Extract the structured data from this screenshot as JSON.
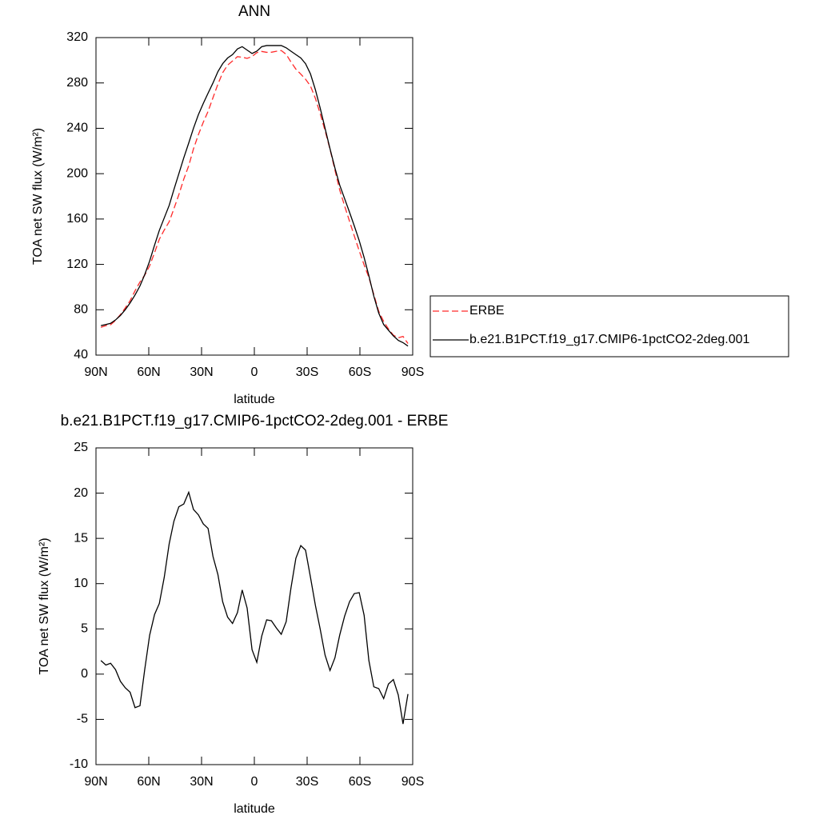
{
  "chart_data": [
    {
      "type": "line",
      "title": "ANN",
      "xlabel": "latitude",
      "ylabel": "TOA net SW flux (W/m²)",
      "x": [
        87.2,
        84.4,
        81.7,
        78.9,
        76.1,
        73.4,
        70.6,
        67.8,
        65.0,
        62.3,
        59.5,
        56.7,
        54.0,
        51.2,
        48.4,
        45.7,
        42.9,
        40.1,
        37.3,
        34.6,
        31.8,
        29.0,
        26.3,
        23.5,
        20.7,
        18.0,
        15.2,
        12.4,
        9.6,
        6.9,
        4.1,
        1.3,
        -1.4,
        -4.2,
        -7.0,
        -9.7,
        -12.5,
        -15.3,
        -18.1,
        -20.8,
        -23.6,
        -26.4,
        -29.1,
        -31.9,
        -34.7,
        -37.4,
        -40.2,
        -43.0,
        -45.8,
        -48.5,
        -51.3,
        -54.1,
        -56.8,
        -59.6,
        -62.4,
        -65.1,
        -67.9,
        -70.7,
        -73.5,
        -76.2,
        -79.0,
        -81.8,
        -84.5,
        -87.3
      ],
      "series": [
        {
          "name": "ERBE",
          "color": "#ff2a2a",
          "dash": true,
          "values": [
            64.5,
            66,
            66.8,
            70.5,
            75.8,
            81.5,
            88,
            96.7,
            104.5,
            110.5,
            118.7,
            130.4,
            142.2,
            150.3,
            157.6,
            169.1,
            181.5,
            195.2,
            206.9,
            221.8,
            234.4,
            245.4,
            254.9,
            267,
            279,
            289,
            295.7,
            299.4,
            303.2,
            302.7,
            301.7,
            303.3,
            306.7,
            307.8,
            307,
            307.1,
            307.9,
            308.6,
            305.2,
            298.5,
            292.2,
            287.8,
            283.3,
            277.3,
            266.4,
            253,
            237.9,
            221.6,
            203.2,
            185.7,
            171.6,
            158,
            145.1,
            132,
            119.5,
            108.5,
            93.4,
            78.6,
            69.7,
            63.1,
            57.6,
            55.3,
            56.5,
            50.2
          ]
        },
        {
          "name": "b.e21.B1PCT.f19_g17.CMIP6-1pctCO2-2deg.001",
          "color": "#000000",
          "dash": false,
          "values": [
            66,
            67,
            68,
            71,
            75,
            80,
            86,
            93,
            101,
            111,
            123,
            137,
            150,
            161,
            172,
            186,
            200,
            214,
            227,
            240,
            252,
            262,
            271,
            280,
            290,
            297,
            302,
            305,
            310,
            312,
            309,
            306,
            308,
            312,
            313,
            313,
            313,
            313,
            311,
            308,
            305,
            302,
            297,
            288,
            274,
            258,
            240,
            222,
            205,
            190,
            178,
            166,
            154,
            141,
            126,
            110,
            92,
            77,
            67,
            62,
            57,
            53,
            51,
            48
          ]
        }
      ],
      "xlim": [
        90,
        -90
      ],
      "xticks": [
        {
          "value": 90,
          "label": "90N"
        },
        {
          "value": 60,
          "label": "60N"
        },
        {
          "value": 30,
          "label": "30N"
        },
        0,
        {
          "value": -30,
          "label": "30S"
        },
        {
          "value": -60,
          "label": "60S"
        },
        {
          "value": -90,
          "label": "90S"
        }
      ],
      "ylim": [
        40,
        320
      ],
      "yticks": [
        40,
        80,
        120,
        160,
        200,
        240,
        280,
        320
      ],
      "legend": "right"
    },
    {
      "type": "line",
      "title": "b.e21.B1PCT.f19_g17.CMIP6-1pctCO2-2deg.001 - ERBE",
      "xlabel": "latitude",
      "ylabel": "TOA net SW flux (W/m²)",
      "x": [
        87.2,
        84.4,
        81.7,
        78.9,
        76.1,
        73.4,
        70.6,
        67.8,
        65.0,
        62.3,
        59.5,
        56.7,
        54.0,
        51.2,
        48.4,
        45.7,
        42.9,
        40.1,
        37.3,
        34.6,
        31.8,
        29.0,
        26.3,
        23.5,
        20.7,
        18.0,
        15.2,
        12.4,
        9.6,
        6.9,
        4.1,
        1.3,
        -1.4,
        -4.2,
        -7.0,
        -9.7,
        -12.5,
        -15.3,
        -18.1,
        -20.8,
        -23.6,
        -26.4,
        -29.1,
        -31.9,
        -34.7,
        -37.4,
        -40.2,
        -43.0,
        -45.8,
        -48.5,
        -51.3,
        -54.1,
        -56.8,
        -59.6,
        -62.4,
        -65.1,
        -67.9,
        -70.7,
        -73.5,
        -76.2,
        -79.0,
        -81.8,
        -84.5,
        -87.3
      ],
      "series": [
        {
          "color": "#000000",
          "dash": false,
          "values": [
            1.5,
            1.0,
            1.2,
            0.5,
            -0.8,
            -1.5,
            -2.0,
            -3.7,
            -3.5,
            0.5,
            4.3,
            6.6,
            7.8,
            10.7,
            14.4,
            16.9,
            18.5,
            18.8,
            20.1,
            18.2,
            17.6,
            16.6,
            16.1,
            13,
            11,
            8,
            6.3,
            5.6,
            6.8,
            9.3,
            7.3,
            2.7,
            1.3,
            4.2,
            6.0,
            5.9,
            5.1,
            4.4,
            5.8,
            9.5,
            12.8,
            14.2,
            13.7,
            10.7,
            7.6,
            5,
            2.1,
            0.4,
            1.8,
            4.3,
            6.4,
            8.0,
            8.9,
            9.0,
            6.5,
            1.5,
            -1.4,
            -1.6,
            -2.7,
            -1.1,
            -0.6,
            -2.3,
            -5.5,
            -2.2
          ]
        }
      ],
      "xlim": [
        90,
        -90
      ],
      "xticks": [
        {
          "value": 90,
          "label": "90N"
        },
        {
          "value": 60,
          "label": "60N"
        },
        {
          "value": 30,
          "label": "30N"
        },
        0,
        {
          "value": -30,
          "label": "30S"
        },
        {
          "value": -60,
          "label": "60S"
        },
        {
          "value": -90,
          "label": "90S"
        }
      ],
      "ylim": [
        -10,
        25
      ],
      "yticks": [
        -10,
        -5,
        0,
        5,
        10,
        15,
        20,
        25
      ]
    }
  ]
}
